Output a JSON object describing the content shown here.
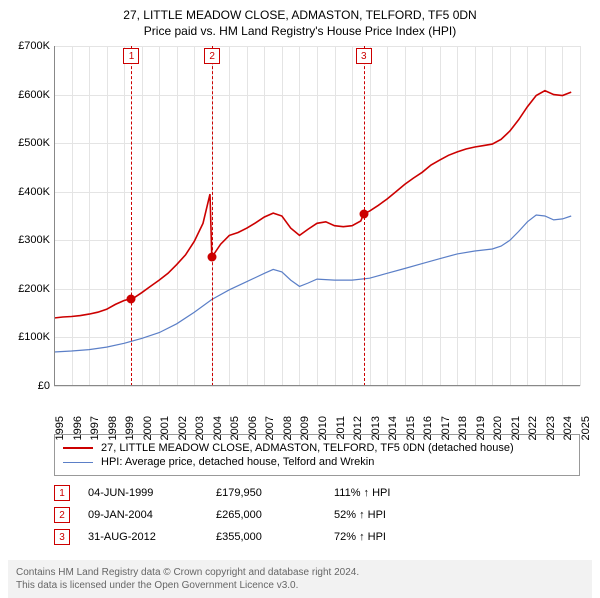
{
  "chart": {
    "title_line1": "27, LITTLE MEADOW CLOSE, ADMASTON, TELFORD, TF5 0DN",
    "title_line2": "Price paid vs. HM Land Registry's House Price Index (HPI)",
    "type": "line",
    "background_color": "#ffffff",
    "grid_color": "#e4e4e4",
    "axis_color": "#888888",
    "ylim": [
      0,
      700000
    ],
    "ytick_step": 100000,
    "yticks": [
      "£0",
      "£100K",
      "£200K",
      "£300K",
      "£400K",
      "£500K",
      "£600K",
      "£700K"
    ],
    "xlim": [
      1995,
      2025
    ],
    "xtick_step": 1,
    "xticks": [
      "1995",
      "1996",
      "1997",
      "1998",
      "1999",
      "2000",
      "2001",
      "2002",
      "2003",
      "2004",
      "2005",
      "2006",
      "2007",
      "2008",
      "2009",
      "2010",
      "2011",
      "2012",
      "2013",
      "2014",
      "2015",
      "2016",
      "2017",
      "2018",
      "2019",
      "2020",
      "2021",
      "2022",
      "2023",
      "2024",
      "2025"
    ],
    "series": [
      {
        "label": "27, LITTLE MEADOW CLOSE, ADMASTON, TELFORD, TF5 0DN (detached house)",
        "color": "#cc0000",
        "width": 1.6,
        "points": [
          [
            1995.0,
            140000
          ],
          [
            1995.5,
            142000
          ],
          [
            1996.0,
            143000
          ],
          [
            1996.5,
            145000
          ],
          [
            1997.0,
            148000
          ],
          [
            1997.5,
            152000
          ],
          [
            1998.0,
            158000
          ],
          [
            1998.5,
            168000
          ],
          [
            1999.0,
            176000
          ],
          [
            1999.42,
            180000
          ],
          [
            1999.5,
            180000
          ],
          [
            2000.0,
            192000
          ],
          [
            2000.5,
            205000
          ],
          [
            2001.0,
            218000
          ],
          [
            2001.5,
            232000
          ],
          [
            2002.0,
            250000
          ],
          [
            2002.5,
            270000
          ],
          [
            2003.0,
            298000
          ],
          [
            2003.5,
            335000
          ],
          [
            2003.9,
            395000
          ],
          [
            2004.0,
            265000
          ],
          [
            2004.5,
            292000
          ],
          [
            2005.0,
            310000
          ],
          [
            2005.5,
            316000
          ],
          [
            2006.0,
            325000
          ],
          [
            2006.5,
            336000
          ],
          [
            2007.0,
            348000
          ],
          [
            2007.5,
            356000
          ],
          [
            2008.0,
            350000
          ],
          [
            2008.5,
            325000
          ],
          [
            2009.0,
            310000
          ],
          [
            2009.5,
            323000
          ],
          [
            2010.0,
            335000
          ],
          [
            2010.5,
            338000
          ],
          [
            2011.0,
            330000
          ],
          [
            2011.5,
            328000
          ],
          [
            2012.0,
            330000
          ],
          [
            2012.5,
            340000
          ],
          [
            2012.67,
            355000
          ],
          [
            2013.0,
            360000
          ],
          [
            2013.5,
            372000
          ],
          [
            2014.0,
            385000
          ],
          [
            2014.5,
            400000
          ],
          [
            2015.0,
            415000
          ],
          [
            2015.5,
            428000
          ],
          [
            2016.0,
            440000
          ],
          [
            2016.5,
            455000
          ],
          [
            2017.0,
            465000
          ],
          [
            2017.5,
            475000
          ],
          [
            2018.0,
            482000
          ],
          [
            2018.5,
            488000
          ],
          [
            2019.0,
            492000
          ],
          [
            2019.5,
            495000
          ],
          [
            2020.0,
            498000
          ],
          [
            2020.5,
            508000
          ],
          [
            2021.0,
            525000
          ],
          [
            2021.5,
            548000
          ],
          [
            2022.0,
            575000
          ],
          [
            2022.5,
            598000
          ],
          [
            2023.0,
            608000
          ],
          [
            2023.5,
            600000
          ],
          [
            2024.0,
            598000
          ],
          [
            2024.5,
            605000
          ]
        ]
      },
      {
        "label": "HPI: Average price, detached house, Telford and Wrekin",
        "color": "#5b7fc7",
        "width": 1.2,
        "points": [
          [
            1995.0,
            70000
          ],
          [
            1996.0,
            72000
          ],
          [
            1997.0,
            75000
          ],
          [
            1998.0,
            80000
          ],
          [
            1999.0,
            88000
          ],
          [
            2000.0,
            98000
          ],
          [
            2001.0,
            110000
          ],
          [
            2002.0,
            128000
          ],
          [
            2003.0,
            152000
          ],
          [
            2004.0,
            178000
          ],
          [
            2005.0,
            198000
          ],
          [
            2006.0,
            215000
          ],
          [
            2007.0,
            232000
          ],
          [
            2007.5,
            240000
          ],
          [
            2008.0,
            235000
          ],
          [
            2008.5,
            218000
          ],
          [
            2009.0,
            205000
          ],
          [
            2009.5,
            212000
          ],
          [
            2010.0,
            220000
          ],
          [
            2011.0,
            218000
          ],
          [
            2012.0,
            218000
          ],
          [
            2013.0,
            222000
          ],
          [
            2014.0,
            232000
          ],
          [
            2015.0,
            242000
          ],
          [
            2016.0,
            252000
          ],
          [
            2017.0,
            262000
          ],
          [
            2018.0,
            272000
          ],
          [
            2019.0,
            278000
          ],
          [
            2020.0,
            282000
          ],
          [
            2020.5,
            288000
          ],
          [
            2021.0,
            300000
          ],
          [
            2021.5,
            318000
          ],
          [
            2022.0,
            338000
          ],
          [
            2022.5,
            352000
          ],
          [
            2023.0,
            350000
          ],
          [
            2023.5,
            342000
          ],
          [
            2024.0,
            344000
          ],
          [
            2024.5,
            350000
          ]
        ]
      }
    ],
    "markers": [
      {
        "n": "1",
        "x": 1999.42,
        "y": 179950
      },
      {
        "n": "2",
        "x": 2004.02,
        "y": 265000
      },
      {
        "n": "3",
        "x": 2012.67,
        "y": 355000
      }
    ]
  },
  "legend": {
    "rows": [
      {
        "color": "#cc0000",
        "width": 2,
        "label": "27, LITTLE MEADOW CLOSE, ADMASTON, TELFORD, TF5 0DN (detached house)"
      },
      {
        "color": "#5b7fc7",
        "width": 1.5,
        "label": "HPI: Average price, detached house, Telford and Wrekin"
      }
    ]
  },
  "events": [
    {
      "n": "1",
      "date": "04-JUN-1999",
      "price": "£179,950",
      "pct": "111% ↑ HPI"
    },
    {
      "n": "2",
      "date": "09-JAN-2004",
      "price": "£265,000",
      "pct": "52% ↑ HPI"
    },
    {
      "n": "3",
      "date": "31-AUG-2012",
      "price": "£355,000",
      "pct": "72% ↑ HPI"
    }
  ],
  "footer": {
    "line1": "Contains HM Land Registry data © Crown copyright and database right 2024.",
    "line2": "This data is licensed under the Open Government Licence v3.0."
  }
}
